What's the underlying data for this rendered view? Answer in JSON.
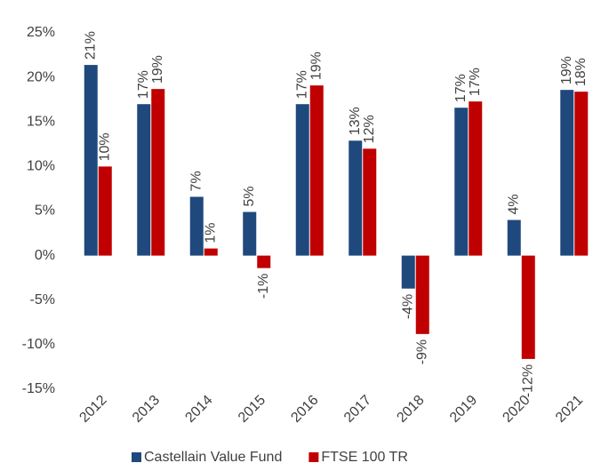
{
  "chart_data": {
    "type": "bar",
    "categories": [
      "2012",
      "2013",
      "2014",
      "2015",
      "2016",
      "2017",
      "2018",
      "2019",
      "2020",
      "2021"
    ],
    "series": [
      {
        "name": "Castellain Value Fund",
        "color": "#1f497d",
        "values": [
          21.4,
          17.0,
          6.6,
          4.9,
          17.0,
          12.9,
          -3.7,
          16.6,
          4.0,
          18.6
        ],
        "value_labels": [
          "21%",
          "17%",
          "7%",
          "5%",
          "17%",
          "13%",
          "-4%",
          "17%",
          "4%",
          "19%"
        ]
      },
      {
        "name": "FTSE 100 TR",
        "color": "#c00000",
        "values": [
          10.0,
          18.7,
          0.8,
          -1.4,
          19.1,
          12.0,
          -8.8,
          17.3,
          -11.6,
          18.4
        ],
        "value_labels": [
          "10%",
          "19%",
          "1%",
          "-1%",
          "19%",
          "12%",
          "-9%",
          "17%",
          "-12%",
          "18%"
        ]
      }
    ],
    "ylim": [
      -15,
      25
    ],
    "yticks": [
      {
        "value": -15,
        "label": "-15%"
      },
      {
        "value": -10,
        "label": "-10%"
      },
      {
        "value": -5,
        "label": "-5%"
      },
      {
        "value": 0,
        "label": "0%"
      },
      {
        "value": 5,
        "label": "5%"
      },
      {
        "value": 10,
        "label": "10%"
      },
      {
        "value": 15,
        "label": "15%"
      },
      {
        "value": 20,
        "label": "20%"
      },
      {
        "value": 25,
        "label": "25%"
      }
    ],
    "grid": false,
    "legend": "bottom"
  }
}
